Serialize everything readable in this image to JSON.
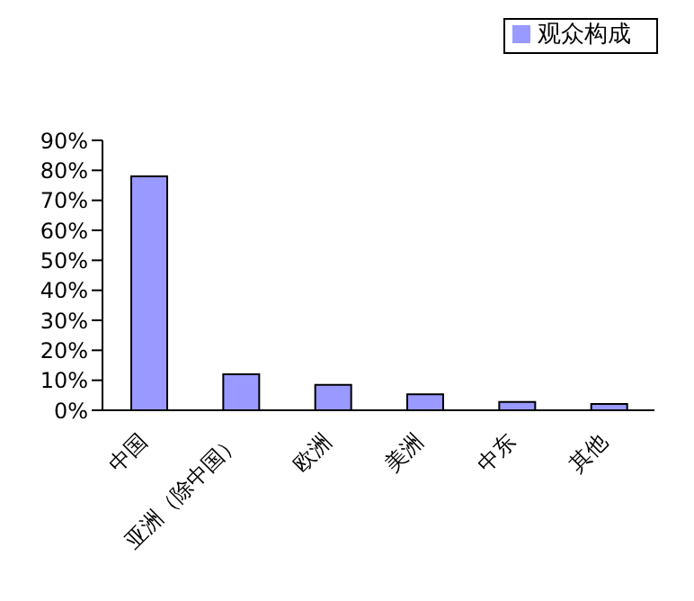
{
  "chart_data": {
    "type": "bar",
    "categories": [
      "中国",
      "亚洲（除中国）",
      "欧洲",
      "美洲",
      "中东",
      "其他"
    ],
    "series": [
      {
        "name": "观众构成",
        "color": "#9999ff",
        "values": [
          78,
          12,
          8.5,
          5.3,
          2.8,
          2.1
        ]
      }
    ],
    "ylim": [
      0,
      90
    ],
    "yticks": [
      {
        "value": 0,
        "label": "0%"
      },
      {
        "value": 10,
        "label": "10%"
      },
      {
        "value": 20,
        "label": "20%"
      },
      {
        "value": 30,
        "label": "30%"
      },
      {
        "value": 40,
        "label": "40%"
      },
      {
        "value": 50,
        "label": "50%"
      },
      {
        "value": 60,
        "label": "60%"
      },
      {
        "value": 70,
        "label": "70%"
      },
      {
        "value": 80,
        "label": "80%"
      },
      {
        "value": 90,
        "label": "90%"
      }
    ],
    "grid": false,
    "legend": "top right"
  }
}
